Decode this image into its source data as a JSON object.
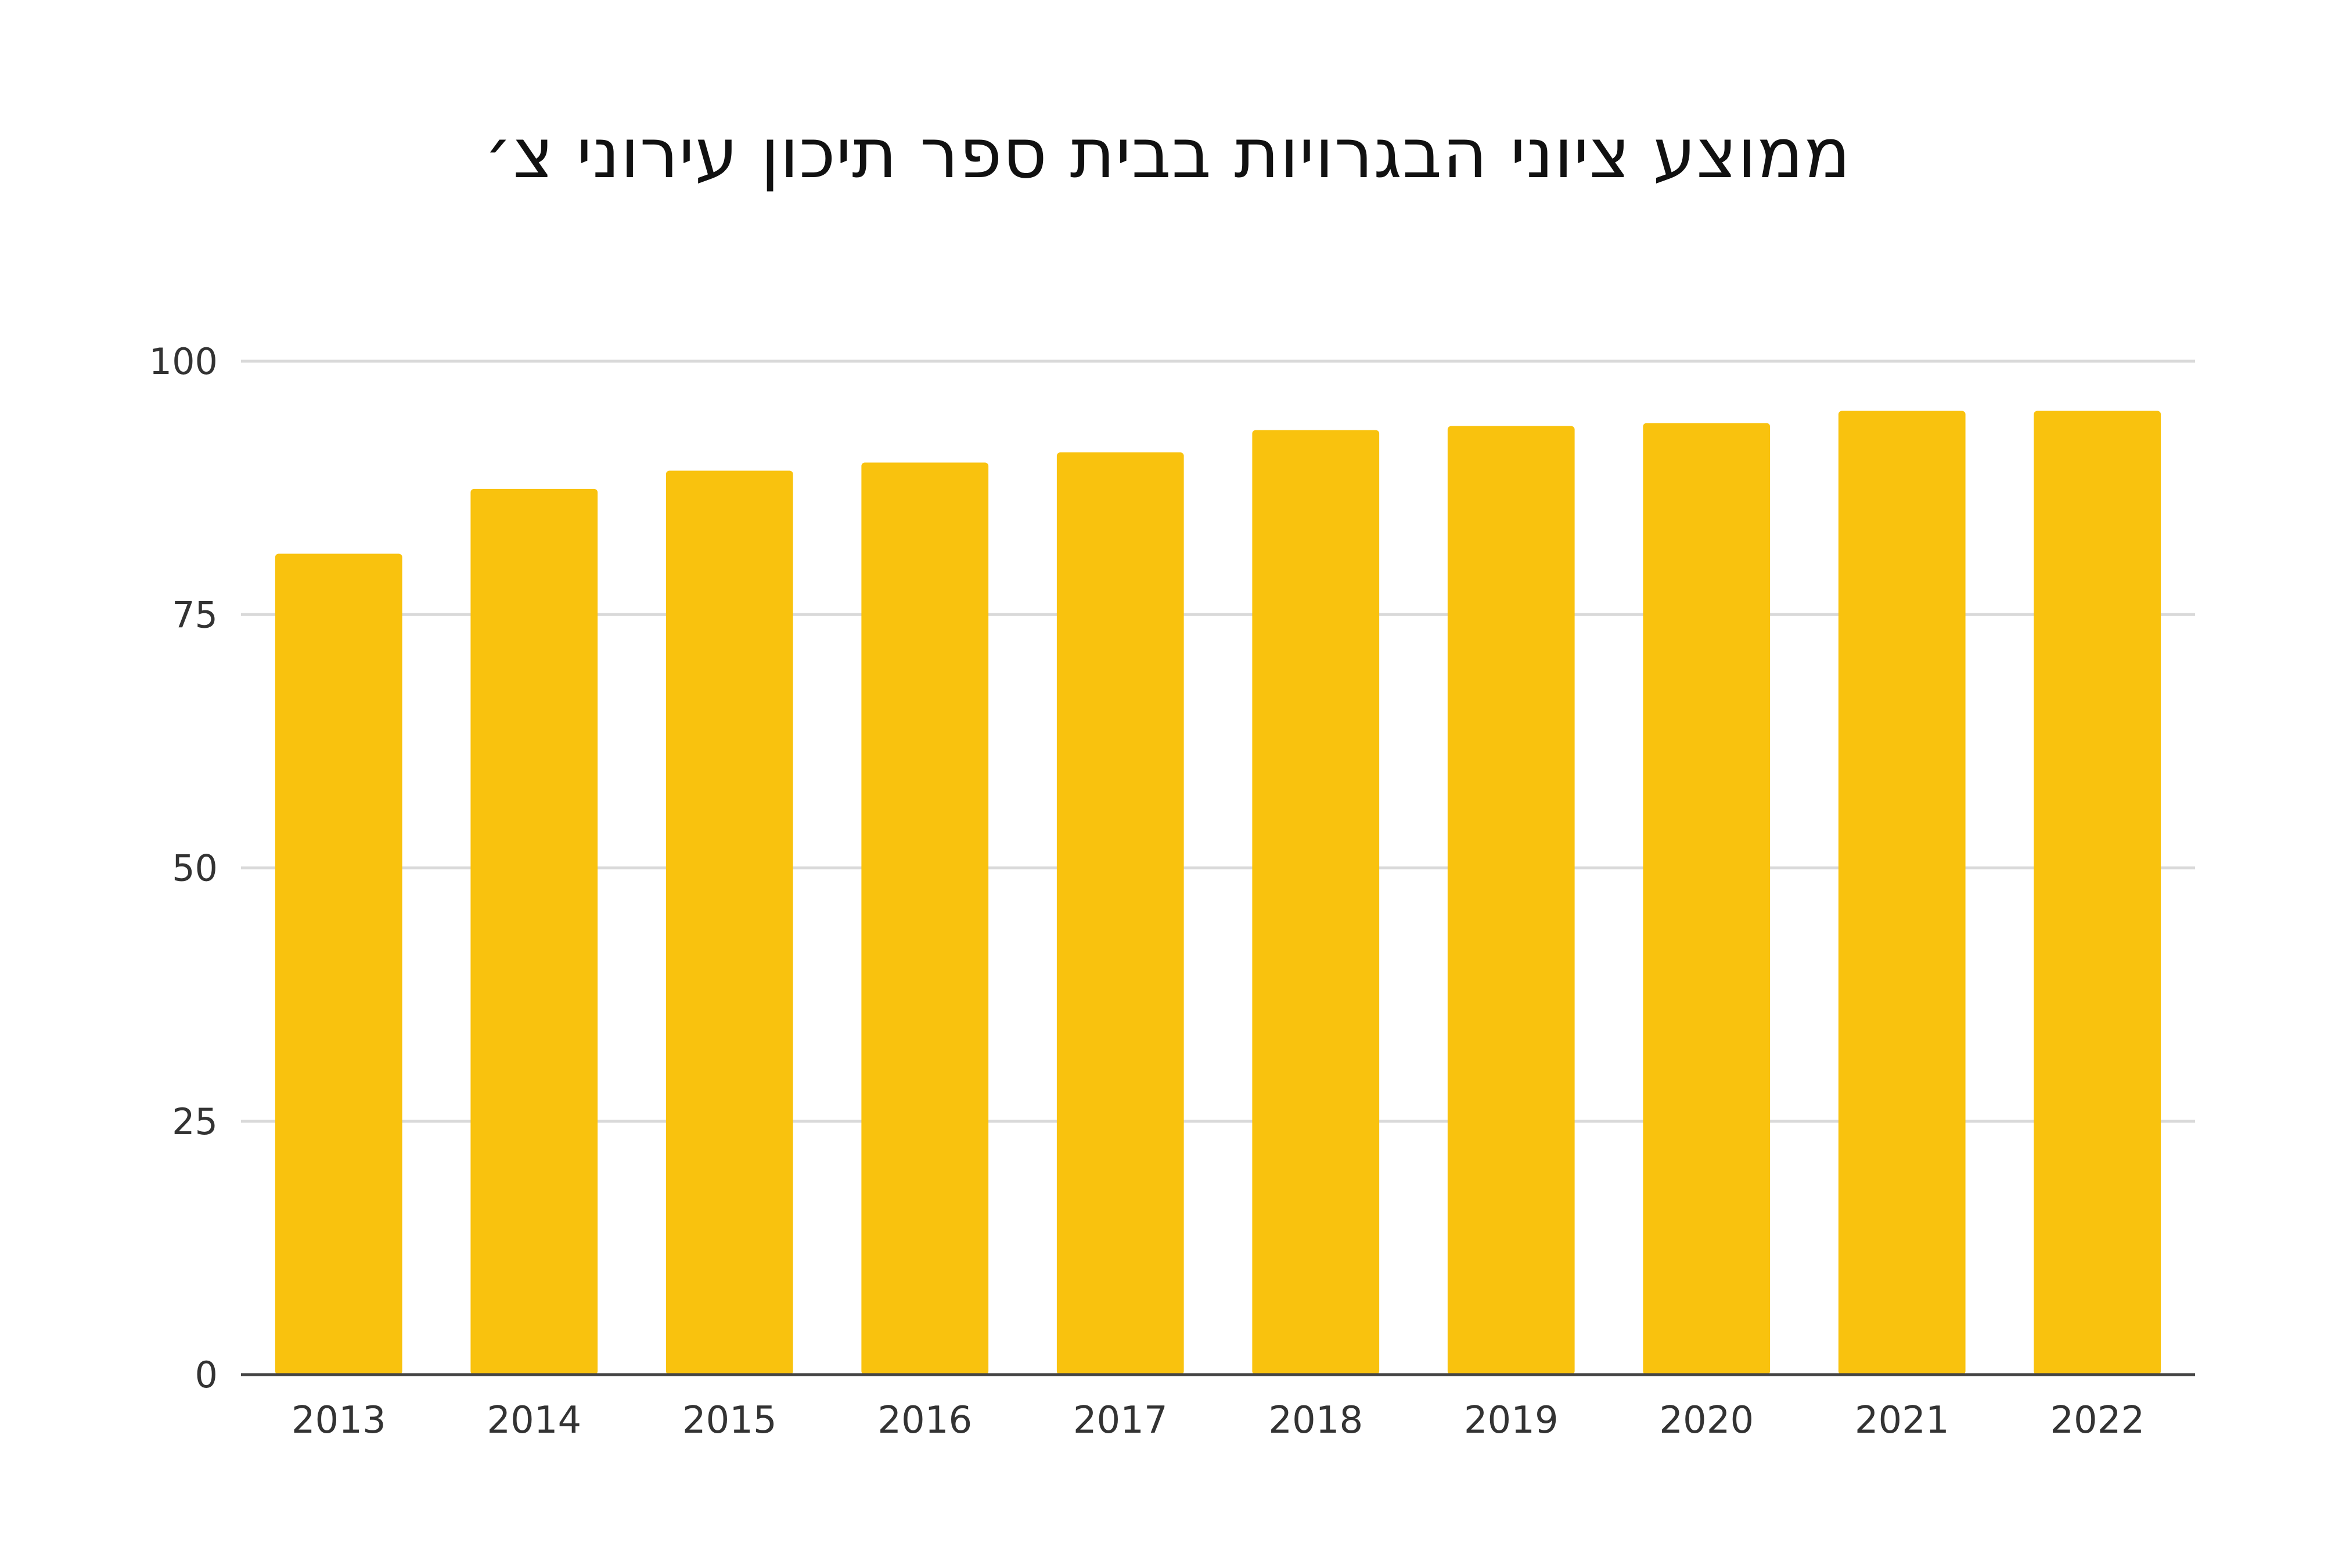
{
  "chart_data": {
    "type": "bar",
    "title": "ממוצע ציוני הבגרויות בבית ספר תיכון עירוני צ׳",
    "xlabel": "",
    "ylabel": "",
    "categories": [
      "2013",
      "2014",
      "2015",
      "2016",
      "2017",
      "2018",
      "2019",
      "2020",
      "2021",
      "2022"
    ],
    "values": [
      81,
      87.4,
      89.2,
      90,
      91,
      93.2,
      93.6,
      93.9,
      95.1,
      95.1
    ],
    "ylim": [
      0,
      100
    ],
    "yticks": [
      "0",
      "25",
      "50",
      "75",
      "100"
    ],
    "grid": true,
    "legend": "none",
    "colors": {
      "bar": "#F9C20E",
      "grid": "#D9D9D9",
      "axis": "#444444",
      "tick_text": "#333333"
    }
  }
}
